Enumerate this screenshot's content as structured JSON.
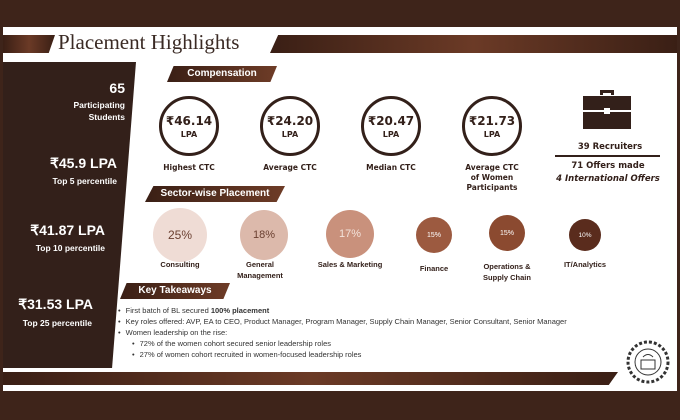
{
  "title": "Placement Highlights",
  "left_panel": {
    "students_count": "65",
    "students_label_1": "Participating",
    "students_label_2": "Students",
    "stats": [
      {
        "value": "₹45.9 LPA",
        "label": "Top 5 percentile"
      },
      {
        "value": "₹41.87 LPA",
        "label": "Top 10 percentile"
      },
      {
        "value": "₹31.53 LPA",
        "label": "Top 25 percentile"
      }
    ]
  },
  "compensation": {
    "heading": "Compensation",
    "unit": "LPA",
    "items": [
      {
        "value": "₹46.14",
        "label": "Highest CTC"
      },
      {
        "value": "₹24.20",
        "label": "Average CTC"
      },
      {
        "value": "₹20.47",
        "label": "Median CTC"
      },
      {
        "value": "₹21.73",
        "label": "Average CTC of Women Participants"
      }
    ]
  },
  "recruiters": {
    "icon": "briefcase-icon",
    "recruiters": "39 Recruiters",
    "offers": "71 Offers made",
    "international": "4 International Offers"
  },
  "sectors": {
    "heading": "Sector-wise Placement",
    "items": [
      {
        "pct": "25%",
        "label": "Consulting",
        "color": "#efdcd5"
      },
      {
        "pct": "18%",
        "label": "General Management",
        "color": "#dcb9ab"
      },
      {
        "pct": "17%",
        "label": "Sales & Marketing",
        "color": "#c9917c"
      },
      {
        "pct": "15%",
        "label": "Finance",
        "color": "#9c5a40"
      },
      {
        "pct": "15%",
        "label": "Operations & Supply Chain",
        "color": "#8b4a30"
      },
      {
        "pct": "10%",
        "label": "IT/Analytics",
        "color": "#5a2c1d"
      }
    ]
  },
  "takeaways": {
    "heading": "Key Takeaways",
    "b1_prefix": "First batch of BL secured ",
    "b1_bold": "100% placement",
    "b2": "Key roles offered: AVP, EA to CEO, Product Manager, Program Manager, Supply Chain Manager, Senior Consultant, Senior Manager",
    "b3": "Women leadership on the rise:",
    "b3a": "72% of the women cohort secured senior leadership roles",
    "b3b": "27% of women cohort recruited in women-focused leadership roles"
  }
}
